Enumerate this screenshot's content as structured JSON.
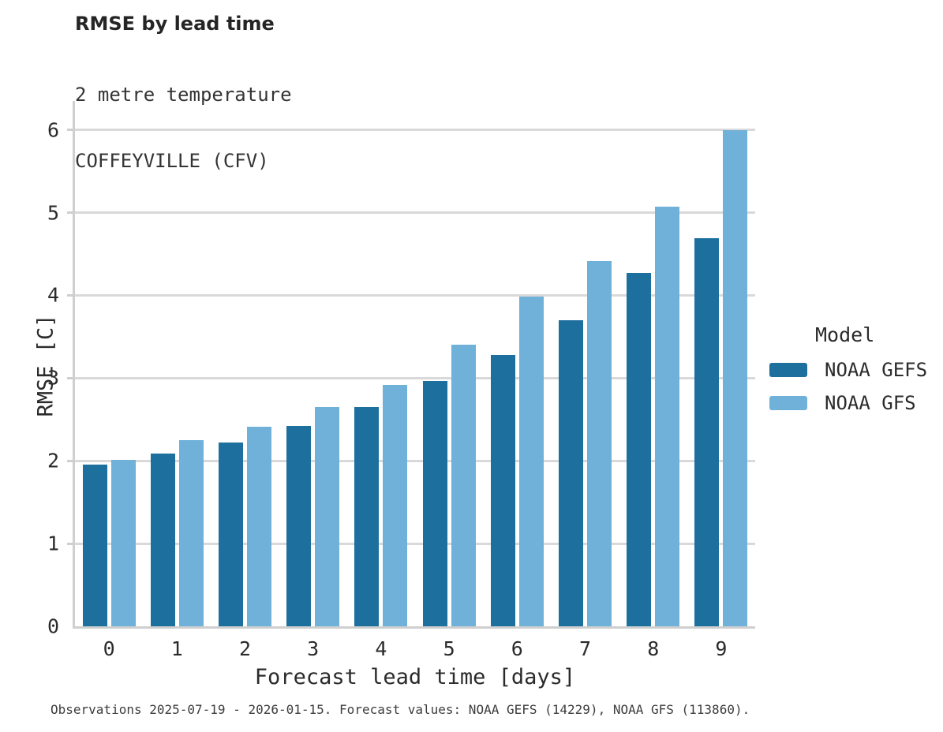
{
  "title": "RMSE by lead time",
  "subtitle": {
    "line1": "2 metre temperature",
    "line2": "COFFEYVILLE (CFV)"
  },
  "caption": "Observations 2025-07-19 - 2026-01-15. Forecast values: NOAA GEFS (14229), NOAA GFS (113860).",
  "legend": {
    "title": "Model",
    "items": [
      {
        "label": "NOAA GEFS",
        "color": "#1d6f9e"
      },
      {
        "label": "NOAA GFS",
        "color": "#70b1d9"
      }
    ]
  },
  "colors": {
    "dark_blue": "#1d6f9e",
    "light_blue": "#70b1d9",
    "gridline": "#d9d9d9",
    "spine": "#cfcfcf"
  },
  "chart_data": {
    "type": "bar",
    "title": "RMSE by lead time",
    "subtitle": "2 metre temperature, COFFEYVILLE (CFV)",
    "xlabel": "Forecast lead time [days]",
    "ylabel": "RMSE [C]",
    "categories": [
      "0",
      "1",
      "2",
      "3",
      "4",
      "5",
      "6",
      "7",
      "8",
      "9"
    ],
    "series": [
      {
        "name": "NOAA GEFS",
        "color": "#1d6f9e",
        "values": [
          1.95,
          2.09,
          2.22,
          2.42,
          2.65,
          2.97,
          3.28,
          3.7,
          4.27,
          4.69
        ]
      },
      {
        "name": "NOAA GFS",
        "color": "#70b1d9",
        "values": [
          2.01,
          2.25,
          2.41,
          2.65,
          2.92,
          3.4,
          3.99,
          4.41,
          5.07,
          6.0
        ]
      }
    ],
    "ylim": [
      0,
      6.35
    ],
    "yticks": [
      0,
      1,
      2,
      3,
      4,
      5,
      6
    ],
    "grid": true,
    "legend_position": "right",
    "legend_title": "Model"
  }
}
